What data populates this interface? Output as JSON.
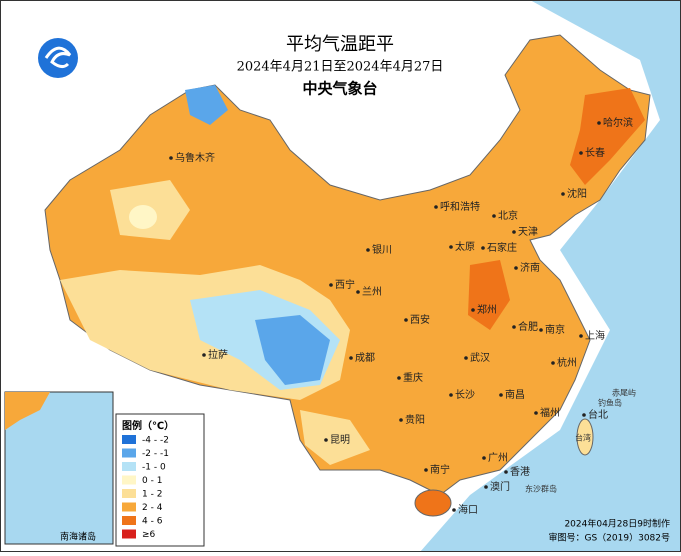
{
  "header": {
    "title": "平均气温距平",
    "date_range": "2024年4月21日至2024年4月27日",
    "agency": "中央气象台"
  },
  "legend": {
    "title": "图例（℃）",
    "items": [
      {
        "label": "-4 - -2",
        "color": "#1f72d8"
      },
      {
        "label": "-2 - -1",
        "color": "#5aa6ea"
      },
      {
        "label": "-1 - 0",
        "color": "#b4e2f6"
      },
      {
        "label": "0 - 1",
        "color": "#fff6c6"
      },
      {
        "label": "1 - 2",
        "color": "#fcdf97"
      },
      {
        "label": "2 - 4",
        "color": "#f7a83a"
      },
      {
        "label": "4 - 6",
        "color": "#ef7419"
      },
      {
        "label": "≥6",
        "color": "#d8201c"
      }
    ]
  },
  "cities": [
    "乌鲁木齐",
    "呼和浩特",
    "北京",
    "天津",
    "哈尔滨",
    "长春",
    "沈阳",
    "银川",
    "太原",
    "石家庄",
    "济南",
    "西宁",
    "兰州",
    "西安",
    "郑州",
    "合肥",
    "南京",
    "上海",
    "拉萨",
    "成都",
    "武汉",
    "杭州",
    "重庆",
    "长沙",
    "南昌",
    "贵阳",
    "福州",
    "台北",
    "昆明",
    "南宁",
    "广州",
    "香港",
    "澳门",
    "海口"
  ],
  "islands": [
    "赤尾屿",
    "钓鱼岛",
    "台湾",
    "东沙群岛"
  ],
  "inset_label": "南海诸岛",
  "footer": {
    "made": "2024年04月28日9时制作",
    "approval": "审图号：GS（2019）3082号"
  }
}
